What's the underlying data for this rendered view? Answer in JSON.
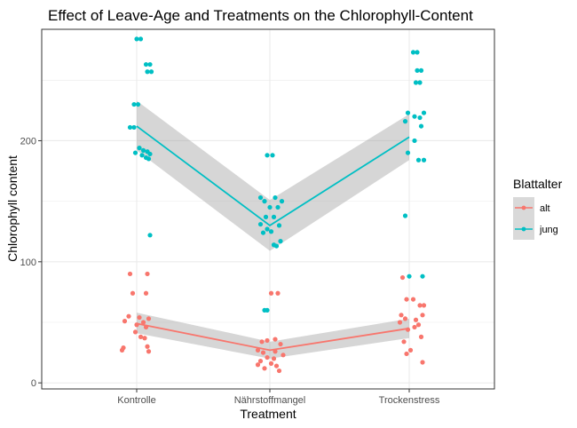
{
  "chart_data": {
    "type": "scatter",
    "title": "Effect of Leave-Age and Treatments on the Chlorophyll-Content",
    "xlabel": "Treatment",
    "ylabel": "Chlorophyll content",
    "categories": [
      "Kontrolle",
      "Nährstoffmangel",
      "Trockenstress"
    ],
    "yticks": [
      0,
      100,
      200
    ],
    "ylim": [
      -5,
      292
    ],
    "grid": true,
    "legend": {
      "title": "Blattalter",
      "position": "right"
    },
    "series": [
      {
        "name": "alt",
        "color": "#F8766D",
        "points": [
          {
            "x": "Kontrolle",
            "y": 90,
            "j": -0.05
          },
          {
            "x": "Kontrolle",
            "y": 90,
            "j": 0.08
          },
          {
            "x": "Kontrolle",
            "y": 74,
            "j": -0.03
          },
          {
            "x": "Kontrolle",
            "y": 74,
            "j": 0.07
          },
          {
            "x": "Kontrolle",
            "y": 55,
            "j": -0.06
          },
          {
            "x": "Kontrolle",
            "y": 54,
            "j": 0.02
          },
          {
            "x": "Kontrolle",
            "y": 53,
            "j": 0.09
          },
          {
            "x": "Kontrolle",
            "y": 51,
            "j": -0.09
          },
          {
            "x": "Kontrolle",
            "y": 50,
            "j": 0.05
          },
          {
            "x": "Kontrolle",
            "y": 48,
            "j": 0.0
          },
          {
            "x": "Kontrolle",
            "y": 46,
            "j": 0.07
          },
          {
            "x": "Kontrolle",
            "y": 42,
            "j": -0.01
          },
          {
            "x": "Kontrolle",
            "y": 38,
            "j": 0.03
          },
          {
            "x": "Kontrolle",
            "y": 37,
            "j": 0.06
          },
          {
            "x": "Kontrolle",
            "y": 30,
            "j": 0.08
          },
          {
            "x": "Kontrolle",
            "y": 29,
            "j": -0.1
          },
          {
            "x": "Kontrolle",
            "y": 27,
            "j": -0.11
          },
          {
            "x": "Kontrolle",
            "y": 26,
            "j": 0.09
          },
          {
            "x": "Nährstoffmangel",
            "y": 74,
            "j": 0.01
          },
          {
            "x": "Nährstoffmangel",
            "y": 74,
            "j": 0.06
          },
          {
            "x": "Nährstoffmangel",
            "y": 35,
            "j": -0.02
          },
          {
            "x": "Nährstoffmangel",
            "y": 36,
            "j": 0.04
          },
          {
            "x": "Nährstoffmangel",
            "y": 34,
            "j": -0.06
          },
          {
            "x": "Nährstoffmangel",
            "y": 32,
            "j": 0.08
          },
          {
            "x": "Nährstoffmangel",
            "y": 27,
            "j": -0.09
          },
          {
            "x": "Nährstoffmangel",
            "y": 26,
            "j": 0.04
          },
          {
            "x": "Nährstoffmangel",
            "y": 25,
            "j": -0.05
          },
          {
            "x": "Nährstoffmangel",
            "y": 23,
            "j": 0.1
          },
          {
            "x": "Nährstoffmangel",
            "y": 21,
            "j": -0.02
          },
          {
            "x": "Nährstoffmangel",
            "y": 20,
            "j": 0.03
          },
          {
            "x": "Nährstoffmangel",
            "y": 18,
            "j": -0.07
          },
          {
            "x": "Nährstoffmangel",
            "y": 16,
            "j": 0.01
          },
          {
            "x": "Nährstoffmangel",
            "y": 15,
            "j": -0.09
          },
          {
            "x": "Nährstoffmangel",
            "y": 14,
            "j": 0.05
          },
          {
            "x": "Nährstoffmangel",
            "y": 12,
            "j": -0.04
          },
          {
            "x": "Nährstoffmangel",
            "y": 10,
            "j": 0.07
          },
          {
            "x": "Trockenstress",
            "y": 87,
            "j": -0.05
          },
          {
            "x": "Trockenstress",
            "y": 69,
            "j": -0.02
          },
          {
            "x": "Trockenstress",
            "y": 69,
            "j": 0.03
          },
          {
            "x": "Trockenstress",
            "y": 64,
            "j": 0.08
          },
          {
            "x": "Trockenstress",
            "y": 64,
            "j": 0.11
          },
          {
            "x": "Trockenstress",
            "y": 56,
            "j": -0.06
          },
          {
            "x": "Trockenstress",
            "y": 56,
            "j": 0.1
          },
          {
            "x": "Trockenstress",
            "y": 53,
            "j": -0.03
          },
          {
            "x": "Trockenstress",
            "y": 52,
            "j": 0.05
          },
          {
            "x": "Trockenstress",
            "y": 50,
            "j": -0.07
          },
          {
            "x": "Trockenstress",
            "y": 48,
            "j": 0.07
          },
          {
            "x": "Trockenstress",
            "y": 46,
            "j": 0.04
          },
          {
            "x": "Trockenstress",
            "y": 44,
            "j": -0.01
          },
          {
            "x": "Trockenstress",
            "y": 38,
            "j": 0.09
          },
          {
            "x": "Trockenstress",
            "y": 34,
            "j": -0.04
          },
          {
            "x": "Trockenstress",
            "y": 27,
            "j": 0.01
          },
          {
            "x": "Trockenstress",
            "y": 24,
            "j": -0.02
          },
          {
            "x": "Trockenstress",
            "y": 17,
            "j": 0.1
          }
        ],
        "line": [
          {
            "x": "Kontrolle",
            "y": 49,
            "lo": 41,
            "hi": 58
          },
          {
            "x": "Nährstoffmangel",
            "y": 27,
            "lo": 20,
            "hi": 34
          },
          {
            "x": "Trockenstress",
            "y": 45,
            "lo": 37,
            "hi": 53
          }
        ]
      },
      {
        "name": "jung",
        "color": "#00BFC4",
        "points": [
          {
            "x": "Kontrolle",
            "y": 284,
            "j": 0.0
          },
          {
            "x": "Kontrolle",
            "y": 284,
            "j": 0.03
          },
          {
            "x": "Kontrolle",
            "y": 263,
            "j": 0.07
          },
          {
            "x": "Kontrolle",
            "y": 263,
            "j": 0.1
          },
          {
            "x": "Kontrolle",
            "y": 257,
            "j": 0.08
          },
          {
            "x": "Kontrolle",
            "y": 257,
            "j": 0.11
          },
          {
            "x": "Kontrolle",
            "y": 230,
            "j": -0.02
          },
          {
            "x": "Kontrolle",
            "y": 230,
            "j": 0.01
          },
          {
            "x": "Kontrolle",
            "y": 211,
            "j": -0.05
          },
          {
            "x": "Kontrolle",
            "y": 211,
            "j": -0.02
          },
          {
            "x": "Kontrolle",
            "y": 194,
            "j": 0.02
          },
          {
            "x": "Kontrolle",
            "y": 192,
            "j": 0.05
          },
          {
            "x": "Kontrolle",
            "y": 191,
            "j": 0.08
          },
          {
            "x": "Kontrolle",
            "y": 190,
            "j": -0.01
          },
          {
            "x": "Kontrolle",
            "y": 189,
            "j": 0.1
          },
          {
            "x": "Kontrolle",
            "y": 188,
            "j": 0.04
          },
          {
            "x": "Kontrolle",
            "y": 186,
            "j": 0.07
          },
          {
            "x": "Kontrolle",
            "y": 185,
            "j": 0.09
          },
          {
            "x": "Kontrolle",
            "y": 122,
            "j": 0.1
          },
          {
            "x": "Nährstoffmangel",
            "y": 188,
            "j": -0.02
          },
          {
            "x": "Nährstoffmangel",
            "y": 188,
            "j": 0.02
          },
          {
            "x": "Nährstoffmangel",
            "y": 153,
            "j": -0.07
          },
          {
            "x": "Nährstoffmangel",
            "y": 153,
            "j": 0.04
          },
          {
            "x": "Nährstoffmangel",
            "y": 150,
            "j": -0.04
          },
          {
            "x": "Nährstoffmangel",
            "y": 150,
            "j": 0.09
          },
          {
            "x": "Nährstoffmangel",
            "y": 145,
            "j": 0.0
          },
          {
            "x": "Nährstoffmangel",
            "y": 145,
            "j": 0.06
          },
          {
            "x": "Nährstoffmangel",
            "y": 137,
            "j": -0.03
          },
          {
            "x": "Nährstoffmangel",
            "y": 137,
            "j": 0.03
          },
          {
            "x": "Nährstoffmangel",
            "y": 131,
            "j": -0.07
          },
          {
            "x": "Nährstoffmangel",
            "y": 130,
            "j": 0.07
          },
          {
            "x": "Nährstoffmangel",
            "y": 127,
            "j": -0.02
          },
          {
            "x": "Nährstoffmangel",
            "y": 125,
            "j": 0.01
          },
          {
            "x": "Nährstoffmangel",
            "y": 124,
            "j": -0.05
          },
          {
            "x": "Nährstoffmangel",
            "y": 117,
            "j": 0.08
          },
          {
            "x": "Nährstoffmangel",
            "y": 114,
            "j": 0.03
          },
          {
            "x": "Nährstoffmangel",
            "y": 113,
            "j": 0.05
          },
          {
            "x": "Nährstoffmangel",
            "y": 60,
            "j": -0.04
          },
          {
            "x": "Nährstoffmangel",
            "y": 60,
            "j": -0.02
          },
          {
            "x": "Trockenstress",
            "y": 273,
            "j": 0.03
          },
          {
            "x": "Trockenstress",
            "y": 273,
            "j": 0.06
          },
          {
            "x": "Trockenstress",
            "y": 258,
            "j": 0.06
          },
          {
            "x": "Trockenstress",
            "y": 258,
            "j": 0.09
          },
          {
            "x": "Trockenstress",
            "y": 248,
            "j": 0.05
          },
          {
            "x": "Trockenstress",
            "y": 248,
            "j": 0.08
          },
          {
            "x": "Trockenstress",
            "y": 223,
            "j": -0.01
          },
          {
            "x": "Trockenstress",
            "y": 223,
            "j": 0.11
          },
          {
            "x": "Trockenstress",
            "y": 220,
            "j": 0.04
          },
          {
            "x": "Trockenstress",
            "y": 219,
            "j": 0.08
          },
          {
            "x": "Trockenstress",
            "y": 216,
            "j": -0.03
          },
          {
            "x": "Trockenstress",
            "y": 212,
            "j": 0.09
          },
          {
            "x": "Trockenstress",
            "y": 200,
            "j": 0.04
          },
          {
            "x": "Trockenstress",
            "y": 190,
            "j": -0.01
          },
          {
            "x": "Trockenstress",
            "y": 184,
            "j": 0.07
          },
          {
            "x": "Trockenstress",
            "y": 184,
            "j": 0.11
          },
          {
            "x": "Trockenstress",
            "y": 138,
            "j": -0.03
          },
          {
            "x": "Trockenstress",
            "y": 88,
            "j": 0.0
          },
          {
            "x": "Trockenstress",
            "y": 88,
            "j": 0.1
          }
        ],
        "line": [
          {
            "x": "Kontrolle",
            "y": 212,
            "lo": 192,
            "hi": 233
          },
          {
            "x": "Nährstoffmangel",
            "y": 130,
            "lo": 109,
            "hi": 151
          },
          {
            "x": "Trockenstress",
            "y": 203,
            "lo": 184,
            "hi": 222
          }
        ]
      }
    ]
  }
}
